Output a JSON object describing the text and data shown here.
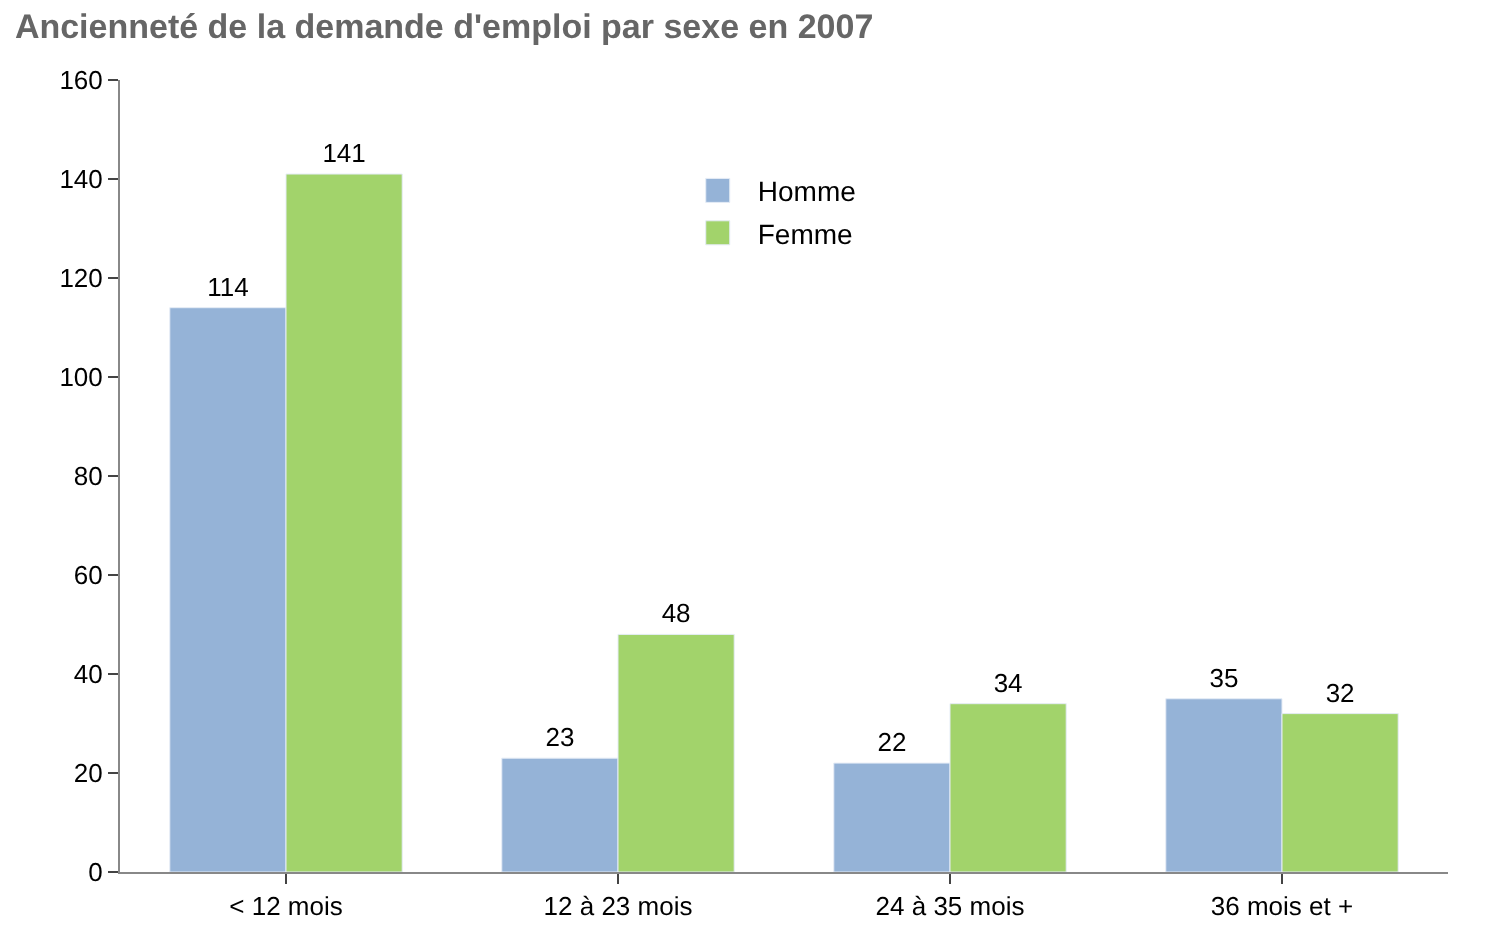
{
  "chart_data": {
    "type": "bar",
    "title": "Ancienneté de la demande d'emploi par sexe en 2007",
    "categories": [
      "< 12 mois",
      "12 à 23 mois",
      "24 à 35 mois",
      "36 mois et +"
    ],
    "series": [
      {
        "name": "Homme",
        "color": "#95b3d7",
        "values": [
          114,
          23,
          22,
          35
        ]
      },
      {
        "name": "Femme",
        "color": "#a2d36b",
        "values": [
          141,
          48,
          34,
          32
        ]
      }
    ],
    "ylim": [
      0,
      160
    ],
    "yticks": [
      0,
      20,
      40,
      60,
      80,
      100,
      120,
      140,
      160
    ],
    "data_labels": true,
    "legend": "top"
  }
}
